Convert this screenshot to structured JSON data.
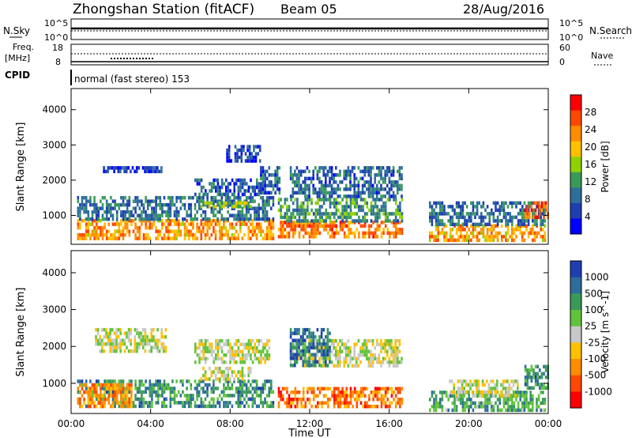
{
  "header": {
    "station_title": "Zhongshan Station (fitACF)",
    "beam": "Beam 05",
    "date": "28/Aug/2016"
  },
  "panels": {
    "nsky_label": "N.Sky",
    "nsky_ticks": [
      "10^5",
      "10^0"
    ],
    "nsearch_label": "N.Search",
    "nsearch_ticks": [
      "10^5",
      "10^0"
    ],
    "freq_label": "Freq.",
    "freq_unit": "[MHz]",
    "freq_ticks": [
      "18",
      "8"
    ],
    "nave_label": "Nave",
    "nave_ticks": [
      "60",
      "0"
    ],
    "cpid_label": "CPID",
    "cpid_text": "normal (fast stereo) 153"
  },
  "chart_data": [
    {
      "type": "heatmap",
      "name": "power",
      "ylabel": "Slant Range [km]",
      "xlabel": "",
      "x_ticks": [
        "00:00",
        "04:00",
        "08:00",
        "12:00",
        "16:00",
        "20:00",
        "00:00"
      ],
      "x_range_hours": [
        0,
        24
      ],
      "ylim": [
        180,
        4600
      ],
      "y_ticks": [
        1000,
        2000,
        3000,
        4000
      ],
      "colorbar": {
        "label": "Power [dB]",
        "ticks": [
          "28",
          "24",
          "20",
          "16",
          "12",
          "8",
          "4"
        ],
        "colors": [
          "#ff0000",
          "#ff4800",
          "#ff8c00",
          "#ffc000",
          "#8fd200",
          "#3a9a5a",
          "#2d6e9a",
          "#1f3fb0",
          "#0000ff"
        ]
      },
      "blocks": [
        {
          "t0": 0.3,
          "t1": 10.2,
          "r0": 350,
          "r1": 900,
          "v": 0.72
        },
        {
          "t0": 0.3,
          "t1": 10.2,
          "r0": 900,
          "r1": 1550,
          "v": 0.25
        },
        {
          "t0": 1.6,
          "t1": 4.5,
          "r0": 2200,
          "r1": 2400,
          "v": 0.12
        },
        {
          "t0": 6.2,
          "t1": 9.6,
          "r0": 1600,
          "r1": 2050,
          "v": 0.18
        },
        {
          "t0": 6.5,
          "t1": 9.0,
          "r0": 1200,
          "r1": 1400,
          "v": 0.45
        },
        {
          "t0": 7.8,
          "t1": 9.5,
          "r0": 2500,
          "r1": 3000,
          "v": 0.12
        },
        {
          "t0": 9.5,
          "t1": 10.5,
          "r0": 1600,
          "r1": 2400,
          "v": 0.2
        },
        {
          "t0": 10.4,
          "t1": 16.6,
          "r0": 350,
          "r1": 850,
          "v": 0.8
        },
        {
          "t0": 10.4,
          "t1": 16.6,
          "r0": 850,
          "r1": 1500,
          "v": 0.35
        },
        {
          "t0": 11.0,
          "t1": 16.6,
          "r0": 1500,
          "r1": 2400,
          "v": 0.22
        },
        {
          "t0": 18.0,
          "t1": 23.8,
          "r0": 300,
          "r1": 750,
          "v": 0.7
        },
        {
          "t0": 18.0,
          "t1": 23.8,
          "r0": 750,
          "r1": 1400,
          "v": 0.25
        },
        {
          "t0": 22.8,
          "t1": 24.0,
          "r0": 900,
          "r1": 1400,
          "v": 0.85
        }
      ]
    },
    {
      "type": "heatmap",
      "name": "velocity",
      "ylabel": "Slant Range [km]",
      "xlabel": "Time UT",
      "x_ticks": [
        "00:00",
        "04:00",
        "08:00",
        "12:00",
        "16:00",
        "20:00",
        "00:00"
      ],
      "x_range_hours": [
        0,
        24
      ],
      "ylim": [
        180,
        4600
      ],
      "y_ticks": [
        1000,
        2000,
        3000,
        4000
      ],
      "colorbar": {
        "label": "Velocity [m s^-1]",
        "ticks": [
          "1000",
          "500",
          "100",
          "25",
          "-25",
          "-100",
          "-500",
          "-1000"
        ],
        "colors": [
          "#1f3fb0",
          "#2d6e9a",
          "#3a9a5a",
          "#62c33b",
          "#c8c8c8",
          "#ffc000",
          "#ff8c00",
          "#ff4800",
          "#ff0000"
        ]
      },
      "blocks": [
        {
          "t0": 0.3,
          "t1": 10.2,
          "r0": 350,
          "r1": 1100,
          "v": 0.78
        },
        {
          "t0": 0.3,
          "t1": 3.0,
          "r0": 350,
          "r1": 1000,
          "v": 0.25
        },
        {
          "t0": 1.2,
          "t1": 4.8,
          "r0": 1900,
          "r1": 2500,
          "v": 0.5
        },
        {
          "t0": 6.2,
          "t1": 10.0,
          "r0": 1600,
          "r1": 2200,
          "v": 0.5
        },
        {
          "t0": 6.5,
          "t1": 9.0,
          "r0": 1150,
          "r1": 1450,
          "v": 0.5
        },
        {
          "t0": 10.4,
          "t1": 16.6,
          "r0": 350,
          "r1": 900,
          "v": 0.2
        },
        {
          "t0": 11.0,
          "t1": 16.6,
          "r0": 1500,
          "r1": 2200,
          "v": 0.5
        },
        {
          "t0": 11.0,
          "t1": 13.0,
          "r0": 1500,
          "r1": 2500,
          "v": 0.88
        },
        {
          "t0": 18.0,
          "t1": 23.8,
          "r0": 300,
          "r1": 800,
          "v": 0.72
        },
        {
          "t0": 19.0,
          "t1": 22.5,
          "r0": 700,
          "r1": 1100,
          "v": 0.5
        },
        {
          "t0": 22.8,
          "t1": 24.0,
          "r0": 900,
          "r1": 1500,
          "v": 0.78
        }
      ]
    }
  ]
}
